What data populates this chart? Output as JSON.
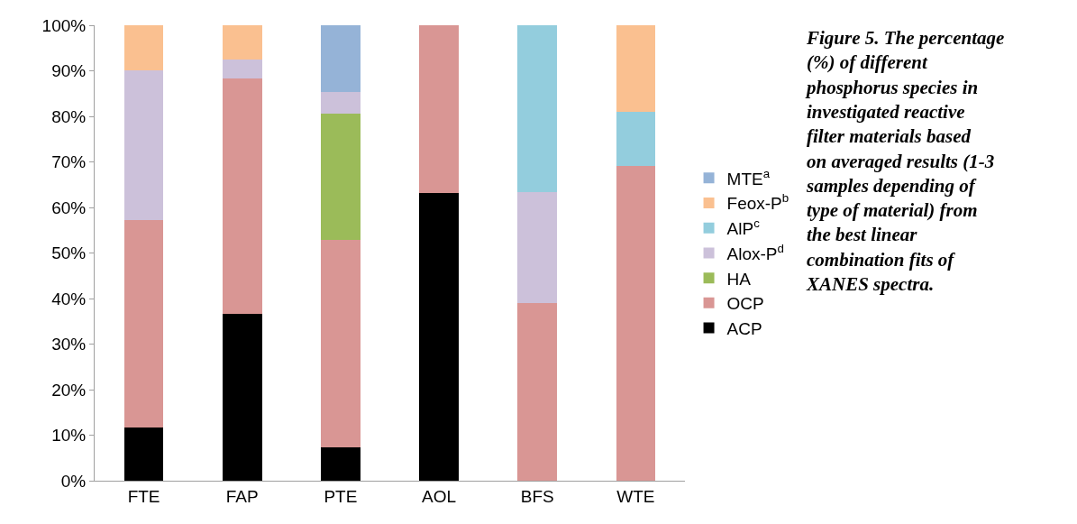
{
  "chart_data": {
    "type": "bar",
    "stacked": true,
    "categories": [
      "FTE",
      "FAP",
      "PTE",
      "AOL",
      "BFS",
      "WTE"
    ],
    "series": [
      {
        "name": "ACP",
        "color": "#000000",
        "values": [
          11.7,
          36.7,
          7.4,
          63.2,
          0,
          0
        ]
      },
      {
        "name": "OCP",
        "color": "#d99694",
        "values": [
          45.5,
          51.6,
          45.5,
          36.8,
          39.0,
          69.1
        ]
      },
      {
        "name": "HA",
        "color": "#9bbb59",
        "values": [
          0,
          0,
          27.7,
          0,
          0,
          0
        ]
      },
      {
        "name": "Alox-P$^{d}$",
        "color": "#ccc1da",
        "values": [
          32.9,
          4.1,
          4.8,
          0,
          24.4,
          0
        ]
      },
      {
        "name": "AlP$^{c}$",
        "color": "#93cddd",
        "values": [
          0,
          0,
          0,
          0,
          36.6,
          11.8
        ]
      },
      {
        "name": "Feox-P$^{b}$",
        "color": "#fac090",
        "values": [
          9.9,
          7.6,
          0,
          0,
          0,
          19.1
        ]
      },
      {
        "name": "MTE$^{a}$",
        "color": "#95b3d7",
        "values": [
          0,
          0,
          14.6,
          0,
          0,
          0
        ]
      }
    ],
    "ylim": [
      0,
      100
    ],
    "yticks": [
      {
        "value": 0,
        "label": "0%"
      },
      {
        "value": 10,
        "label": "10%"
      },
      {
        "value": 20,
        "label": "20%"
      },
      {
        "value": 30,
        "label": "30%"
      },
      {
        "value": 40,
        "label": "40%"
      },
      {
        "value": 50,
        "label": "50%"
      },
      {
        "value": 60,
        "label": "60%"
      },
      {
        "value": 70,
        "label": "70%"
      },
      {
        "value": 80,
        "label": "80%"
      },
      {
        "value": 90,
        "label": "90%"
      },
      {
        "value": 100,
        "label": "100%"
      }
    ],
    "legend": "right",
    "annotations": [
      "Figure 5. The percentage (%) of different phosphorus species in investigated reactive filter materials based on averaged results (1-3 samples depending of type of material) from the best linear combination fits of XANES spectra."
    ]
  }
}
